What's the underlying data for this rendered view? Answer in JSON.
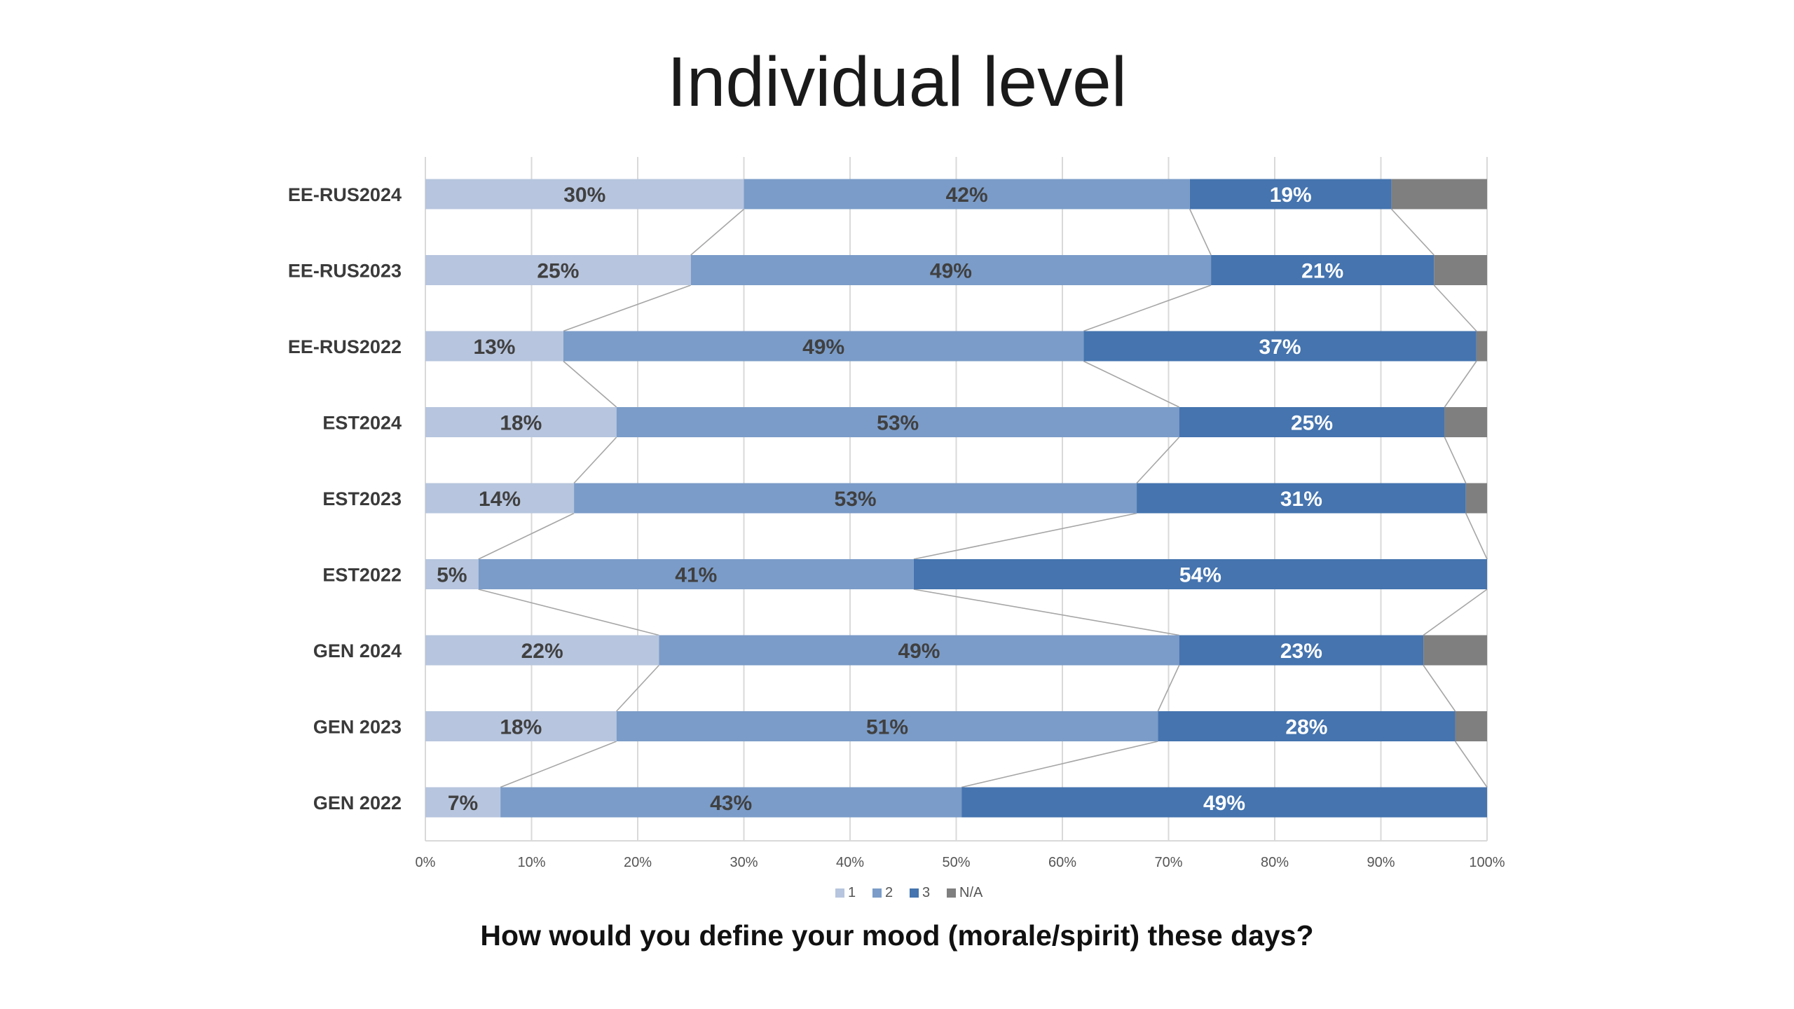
{
  "title": "Individual level",
  "question": "How would you define your mood (morale/spirit) these days?",
  "chart_data": {
    "type": "bar",
    "orientation": "horizontal",
    "stacked": "percent",
    "categories": [
      "EE-RUS2024",
      "EE-RUS2023",
      "EE-RUS2022",
      "EST2024",
      "EST2023",
      "EST2022",
      "GEN 2024",
      "GEN 2023",
      "GEN 2022"
    ],
    "series": [
      {
        "name": "1",
        "color": "#b7c5de",
        "values": [
          30,
          25,
          13,
          18,
          14,
          5,
          22,
          18,
          7
        ],
        "labels": [
          "30%",
          "25%",
          "13%",
          "18%",
          "14%",
          "5%",
          "22%",
          "18%",
          "7%"
        ]
      },
      {
        "name": "2",
        "color": "#7b9cc8",
        "values": [
          42,
          49,
          49,
          53,
          53,
          41,
          49,
          51,
          43
        ],
        "labels": [
          "42%",
          "49%",
          "49%",
          "53%",
          "53%",
          "41%",
          "49%",
          "51%",
          "43%"
        ]
      },
      {
        "name": "3",
        "color": "#4574af",
        "values": [
          19,
          21,
          37,
          25,
          31,
          54,
          23,
          28,
          49
        ],
        "labels": [
          "19%",
          "21%",
          "37%",
          "25%",
          "31%",
          "54%",
          "23%",
          "28%",
          "49%"
        ]
      },
      {
        "name": "N/A",
        "color": "#7f7f7f",
        "values": [
          9,
          5,
          1,
          4,
          2,
          0,
          6,
          3,
          0
        ],
        "labels": [
          "",
          "",
          "",
          "",
          "",
          "",
          "",
          "",
          ""
        ]
      }
    ],
    "xlim": [
      0,
      100
    ],
    "x_ticks": [
      "0%",
      "10%",
      "20%",
      "30%",
      "40%",
      "50%",
      "60%",
      "70%",
      "80%",
      "90%",
      "100%"
    ],
    "series_lines": true,
    "grid": true,
    "legend": "bottom"
  }
}
